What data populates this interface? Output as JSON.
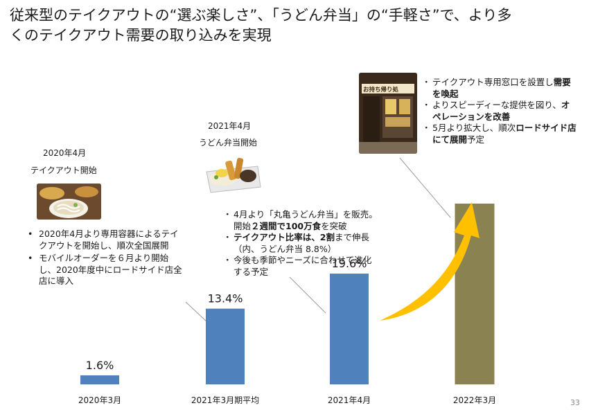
{
  "title": {
    "line1": "従来型のテイクアウトの“選ぶ楽しさ”、「うどん弁当」の“手軽さ”で、より多",
    "line2": "くのテイクアウト需要の取り込みを実現"
  },
  "milestones": {
    "takeout": {
      "date": "2020年4月",
      "caption": "テイクアウト開始"
    },
    "bento": {
      "date": "2021年4月",
      "caption": "うどん弁当開始"
    }
  },
  "notes": {
    "left": [
      "2020年4月より専用容器によるテイクアウトを開始し、順次全国展開",
      "モバイルオーダーを６月より開始し、2020年度中にロードサイド店全店に導入"
    ],
    "middle": {
      "item1_line1": "4月より「丸亀うどん弁当」を販売。",
      "item1_line2_pre": "開始",
      "item1_line2_bold": "２週間で100万食",
      "item1_line2_post": "を突破",
      "item2_bold": "テイクアウト比率は、2割",
      "item2_post": "まで伸長",
      "item2_sub": "（内、うどん弁当 8.8%）",
      "item3_line1": "今後も季節やニーズに合わせて進化",
      "item3_line2": "する予定"
    },
    "right": {
      "item1_pre": "テイクアウト専用窓口を設置し",
      "item1_bold1": "需要",
      "item1_bold2": "を喚起",
      "item2_pre": "よりスピーディーな提供を図り、",
      "item2_bold1": "オ",
      "item2_bold2": "ペレーションを改善",
      "item3_pre": "5月より拡大し、順次",
      "item3_bold1": "ロードサイド店",
      "item3_bold2": "にて展開",
      "item3_post": "予定"
    }
  },
  "photo_sign_text": "お持ち帰り処",
  "page_number": "33",
  "colors": {
    "bar": "#4f81bd",
    "bar_future": "#8b8251",
    "arrow": "#ffc000"
  },
  "chart_data": {
    "type": "bar",
    "categories": [
      "2020年3月",
      "2021年3月期平均",
      "2021年4月",
      "2022年3月"
    ],
    "values": [
      1.6,
      13.4,
      19.6,
      null
    ],
    "value_labels": [
      "1.6%",
      "13.4%",
      "19.6%",
      ""
    ],
    "future_bar_category": "2022年3月",
    "unit": "%"
  }
}
